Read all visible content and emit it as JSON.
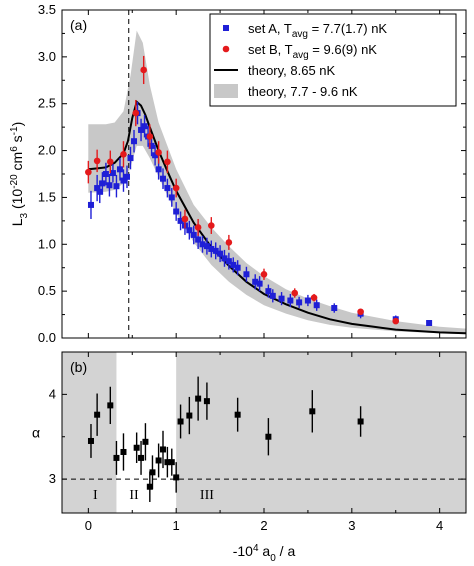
{
  "chart_data": [
    {
      "panel": "(a)",
      "type": "scatter",
      "ylabel": "L_3 (10^-20 cm^6 s^-1)",
      "xlim": [
        -0.3,
        4.3
      ],
      "ylim": [
        0,
        3.5
      ],
      "yticks": [
        "0.0",
        "0.5",
        "1.0",
        "1.5",
        "2.0",
        "2.5",
        "3.0",
        "3.5"
      ],
      "legend_placement": "top-right",
      "legend": [
        {
          "key": "setA",
          "text": "set A, T_avg = 7.7(1.7) nK"
        },
        {
          "key": "setB",
          "text": "set B, T_avg = 9.6(9) nK"
        },
        {
          "key": "theory",
          "text": "theory, 8.65 nK"
        },
        {
          "key": "band",
          "text": "theory, 7.7 - 9.6 nK"
        }
      ],
      "vline_x": 0.46,
      "colors": {
        "setA": "#1f1fd6",
        "setB": "#e41a1c",
        "band": "#c8c8c8",
        "theory": "#000000"
      },
      "series": [
        {
          "name": "set A, T_avg = 7.7(1.7) nK",
          "key": "setA",
          "points": [
            [
              0.03,
              1.42,
              0.15
            ],
            [
              0.1,
              1.6,
              0.14
            ],
            [
              0.13,
              1.56,
              0.12
            ],
            [
              0.16,
              1.65,
              0.12
            ],
            [
              0.2,
              1.75,
              0.12
            ],
            [
              0.24,
              1.63,
              0.12
            ],
            [
              0.28,
              1.76,
              0.1
            ],
            [
              0.32,
              1.62,
              0.12
            ],
            [
              0.36,
              1.8,
              0.12
            ],
            [
              0.4,
              1.68,
              0.12
            ],
            [
              0.44,
              1.72,
              0.12
            ],
            [
              0.48,
              1.92,
              0.12
            ],
            [
              0.52,
              2.1,
              0.12
            ],
            [
              0.56,
              2.4,
              0.12
            ],
            [
              0.6,
              2.22,
              0.12
            ],
            [
              0.64,
              2.26,
              0.12
            ],
            [
              0.68,
              2.15,
              0.11
            ],
            [
              0.72,
              2.05,
              0.11
            ],
            [
              0.76,
              1.95,
              0.11
            ],
            [
              0.8,
              1.8,
              0.11
            ],
            [
              0.85,
              1.7,
              0.11
            ],
            [
              0.9,
              1.6,
              0.1
            ],
            [
              0.95,
              1.5,
              0.1
            ],
            [
              1.0,
              1.35,
              0.1
            ],
            [
              1.05,
              1.25,
              0.1
            ],
            [
              1.1,
              1.2,
              0.1
            ],
            [
              1.15,
              1.15,
              0.1
            ],
            [
              1.2,
              1.1,
              0.1
            ],
            [
              1.25,
              1.05,
              0.1
            ],
            [
              1.3,
              1.0,
              0.09
            ],
            [
              1.35,
              0.98,
              0.09
            ],
            [
              1.4,
              0.95,
              0.09
            ],
            [
              1.45,
              0.93,
              0.09
            ],
            [
              1.5,
              0.9,
              0.09
            ],
            [
              1.55,
              0.85,
              0.09
            ],
            [
              1.6,
              0.82,
              0.09
            ],
            [
              1.65,
              0.78,
              0.08
            ],
            [
              1.7,
              0.75,
              0.08
            ],
            [
              1.8,
              0.68,
              0.08
            ],
            [
              1.9,
              0.6,
              0.08
            ],
            [
              1.95,
              0.58,
              0.08
            ],
            [
              2.05,
              0.5,
              0.07
            ],
            [
              2.1,
              0.45,
              0.07
            ],
            [
              2.2,
              0.42,
              0.07
            ],
            [
              2.3,
              0.4,
              0.07
            ],
            [
              2.4,
              0.38,
              0.06
            ],
            [
              2.5,
              0.4,
              0.06
            ],
            [
              2.6,
              0.35,
              0.06
            ],
            [
              2.8,
              0.32,
              0.05
            ],
            [
              3.1,
              0.26,
              0.05
            ],
            [
              3.5,
              0.2,
              0.04
            ],
            [
              3.88,
              0.16,
              0.03
            ]
          ]
        },
        {
          "name": "set B, T_avg = 9.6(9) nK",
          "key": "setB",
          "points": [
            [
              0.0,
              1.77,
              0.12
            ],
            [
              0.1,
              1.89,
              0.12
            ],
            [
              0.25,
              1.88,
              0.12
            ],
            [
              0.4,
              1.96,
              0.14
            ],
            [
              0.54,
              2.4,
              0.14
            ],
            [
              0.63,
              2.86,
              0.15
            ],
            [
              0.7,
              2.15,
              0.13
            ],
            [
              0.8,
              1.98,
              0.12
            ],
            [
              0.9,
              1.88,
              0.12
            ],
            [
              1.0,
              1.6,
              0.1
            ],
            [
              1.1,
              1.27,
              0.1
            ],
            [
              1.25,
              1.18,
              0.09
            ],
            [
              1.4,
              1.2,
              0.09
            ],
            [
              1.6,
              1.02,
              0.08
            ],
            [
              2.0,
              0.68,
              0.06
            ],
            [
              2.35,
              0.48,
              0.05
            ],
            [
              2.57,
              0.43,
              0.04
            ],
            [
              3.1,
              0.28,
              0.03
            ],
            [
              3.5,
              0.18,
              0.02
            ]
          ]
        }
      ],
      "theory_curve": [
        [
          0.0,
          1.8
        ],
        [
          0.1,
          1.81
        ],
        [
          0.2,
          1.82
        ],
        [
          0.3,
          1.87
        ],
        [
          0.4,
          1.97
        ],
        [
          0.45,
          2.1
        ],
        [
          0.5,
          2.35
        ],
        [
          0.55,
          2.52
        ],
        [
          0.6,
          2.48
        ],
        [
          0.65,
          2.38
        ],
        [
          0.7,
          2.25
        ],
        [
          0.8,
          2.0
        ],
        [
          0.9,
          1.78
        ],
        [
          1.0,
          1.57
        ],
        [
          1.2,
          1.23
        ],
        [
          1.4,
          0.97
        ],
        [
          1.6,
          0.77
        ],
        [
          1.8,
          0.6
        ],
        [
          2.0,
          0.47
        ],
        [
          2.25,
          0.36
        ],
        [
          2.5,
          0.27
        ],
        [
          2.75,
          0.2
        ],
        [
          3.0,
          0.15
        ],
        [
          3.25,
          0.12
        ],
        [
          3.5,
          0.09
        ],
        [
          3.75,
          0.075
        ],
        [
          4.0,
          0.06
        ],
        [
          4.3,
          0.05
        ]
      ],
      "band_upper": [
        [
          0.0,
          2.28
        ],
        [
          0.2,
          2.28
        ],
        [
          0.3,
          2.3
        ],
        [
          0.4,
          2.42
        ],
        [
          0.48,
          2.8
        ],
        [
          0.55,
          3.28
        ],
        [
          0.62,
          3.15
        ],
        [
          0.7,
          2.7
        ],
        [
          0.8,
          2.3
        ],
        [
          0.9,
          2.05
        ],
        [
          1.0,
          1.8
        ],
        [
          1.2,
          1.42
        ],
        [
          1.4,
          1.18
        ],
        [
          1.6,
          0.98
        ],
        [
          1.8,
          0.8
        ],
        [
          2.0,
          0.66
        ],
        [
          2.25,
          0.52
        ],
        [
          2.5,
          0.42
        ],
        [
          2.75,
          0.34
        ],
        [
          3.0,
          0.27
        ],
        [
          3.5,
          0.18
        ],
        [
          4.0,
          0.12
        ],
        [
          4.3,
          0.1
        ]
      ],
      "band_lower": [
        [
          0.0,
          1.55
        ],
        [
          0.2,
          1.56
        ],
        [
          0.3,
          1.58
        ],
        [
          0.4,
          1.65
        ],
        [
          0.48,
          1.82
        ],
        [
          0.55,
          2.05
        ],
        [
          0.62,
          2.05
        ],
        [
          0.7,
          1.92
        ],
        [
          0.8,
          1.72
        ],
        [
          0.9,
          1.52
        ],
        [
          1.0,
          1.33
        ],
        [
          1.2,
          1.02
        ],
        [
          1.4,
          0.78
        ],
        [
          1.6,
          0.6
        ],
        [
          1.8,
          0.46
        ],
        [
          2.0,
          0.35
        ],
        [
          2.25,
          0.26
        ],
        [
          2.5,
          0.19
        ],
        [
          2.75,
          0.14
        ],
        [
          3.0,
          0.11
        ],
        [
          3.5,
          0.07
        ],
        [
          4.0,
          0.05
        ],
        [
          4.3,
          0.04
        ]
      ]
    },
    {
      "panel": "(b)",
      "type": "scatter",
      "xlabel": "-10^4 a_0 / a",
      "ylabel": "α",
      "xlim": [
        -0.3,
        4.3
      ],
      "ylim": [
        2.6,
        4.5
      ],
      "xticks": [
        "0",
        "1",
        "2",
        "3",
        "4"
      ],
      "yticks": [
        "3",
        "4"
      ],
      "hline_y": 3,
      "shaded_regions": [
        [
          -0.3,
          0.32
        ],
        [
          1.0,
          4.3
        ]
      ],
      "region_labels": [
        {
          "text": "I",
          "x": 0.08
        },
        {
          "text": "II",
          "x": 0.52
        },
        {
          "text": "III",
          "x": 1.35
        }
      ],
      "colors": {
        "region": "#d3d3d3",
        "points": "#000000"
      },
      "series": [
        {
          "name": "",
          "points": [
            [
              0.03,
              3.45,
              0.2
            ],
            [
              0.1,
              3.76,
              0.25
            ],
            [
              0.25,
              3.87,
              0.22
            ],
            [
              0.32,
              3.25,
              0.2
            ],
            [
              0.4,
              3.32,
              0.22
            ],
            [
              0.55,
              3.37,
              0.18
            ],
            [
              0.6,
              3.25,
              0.2
            ],
            [
              0.65,
              3.44,
              0.22
            ],
            [
              0.7,
              2.91,
              0.18
            ],
            [
              0.73,
              3.08,
              0.2
            ],
            [
              0.8,
              3.22,
              0.2
            ],
            [
              0.85,
              3.35,
              0.22
            ],
            [
              0.9,
              3.2,
              0.18
            ],
            [
              0.95,
              3.2,
              0.16
            ],
            [
              1.0,
              3.02,
              0.18
            ],
            [
              1.05,
              3.68,
              0.2
            ],
            [
              1.15,
              3.75,
              0.22
            ],
            [
              1.25,
              3.95,
              0.26
            ],
            [
              1.35,
              3.92,
              0.22
            ],
            [
              1.7,
              3.76,
              0.2
            ],
            [
              2.05,
              3.5,
              0.22
            ],
            [
              2.55,
              3.8,
              0.25
            ],
            [
              3.1,
              3.68,
              0.18
            ]
          ]
        }
      ]
    }
  ]
}
